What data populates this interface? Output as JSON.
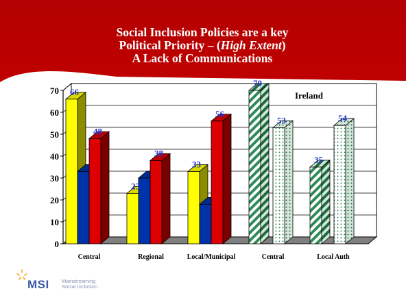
{
  "slide": {
    "title_lines": [
      "Social Inclusion Policies are a key",
      "Political Priority – (",
      "High Extent",
      ")",
      "A Lack of Communications"
    ],
    "logo": {
      "name": "MSI",
      "tagline_1": "Mainstreaming",
      "tagline_2": "Social Inclusion"
    },
    "colors": {
      "background_red": "#cc0000",
      "title_text": "#ffffff"
    }
  },
  "chart_data": {
    "type": "bar",
    "ylim": [
      0,
      70
    ],
    "yticks": [
      0,
      10,
      20,
      30,
      40,
      50,
      60,
      70
    ],
    "grid": true,
    "annotation": "Ireland",
    "categories": [
      "Central",
      "Regional",
      "Local/Municipal",
      "Central",
      "Local Auth"
    ],
    "series_colors": [
      "#ffff00",
      "#0033aa",
      "#dd0000"
    ],
    "series_colors_ireland": [
      "striped-green",
      "dotted-green"
    ],
    "groups": [
      {
        "category": "Central",
        "values": [
          66,
          33,
          48
        ],
        "labels": [
          "66",
          "",
          "48"
        ]
      },
      {
        "category": "Regional",
        "values": [
          23,
          30,
          38
        ],
        "labels": [
          "23",
          "",
          "38"
        ]
      },
      {
        "category": "Local/Municipal",
        "values": [
          33,
          18,
          56
        ],
        "labels": [
          "33",
          "",
          "56"
        ]
      },
      {
        "category": "Central",
        "values": [
          70,
          53
        ],
        "labels": [
          "70",
          "53"
        ]
      },
      {
        "category": "Local Auth",
        "values": [
          35,
          54
        ],
        "labels": [
          "35",
          "54"
        ]
      }
    ],
    "value_label_color": "#2233cc"
  }
}
